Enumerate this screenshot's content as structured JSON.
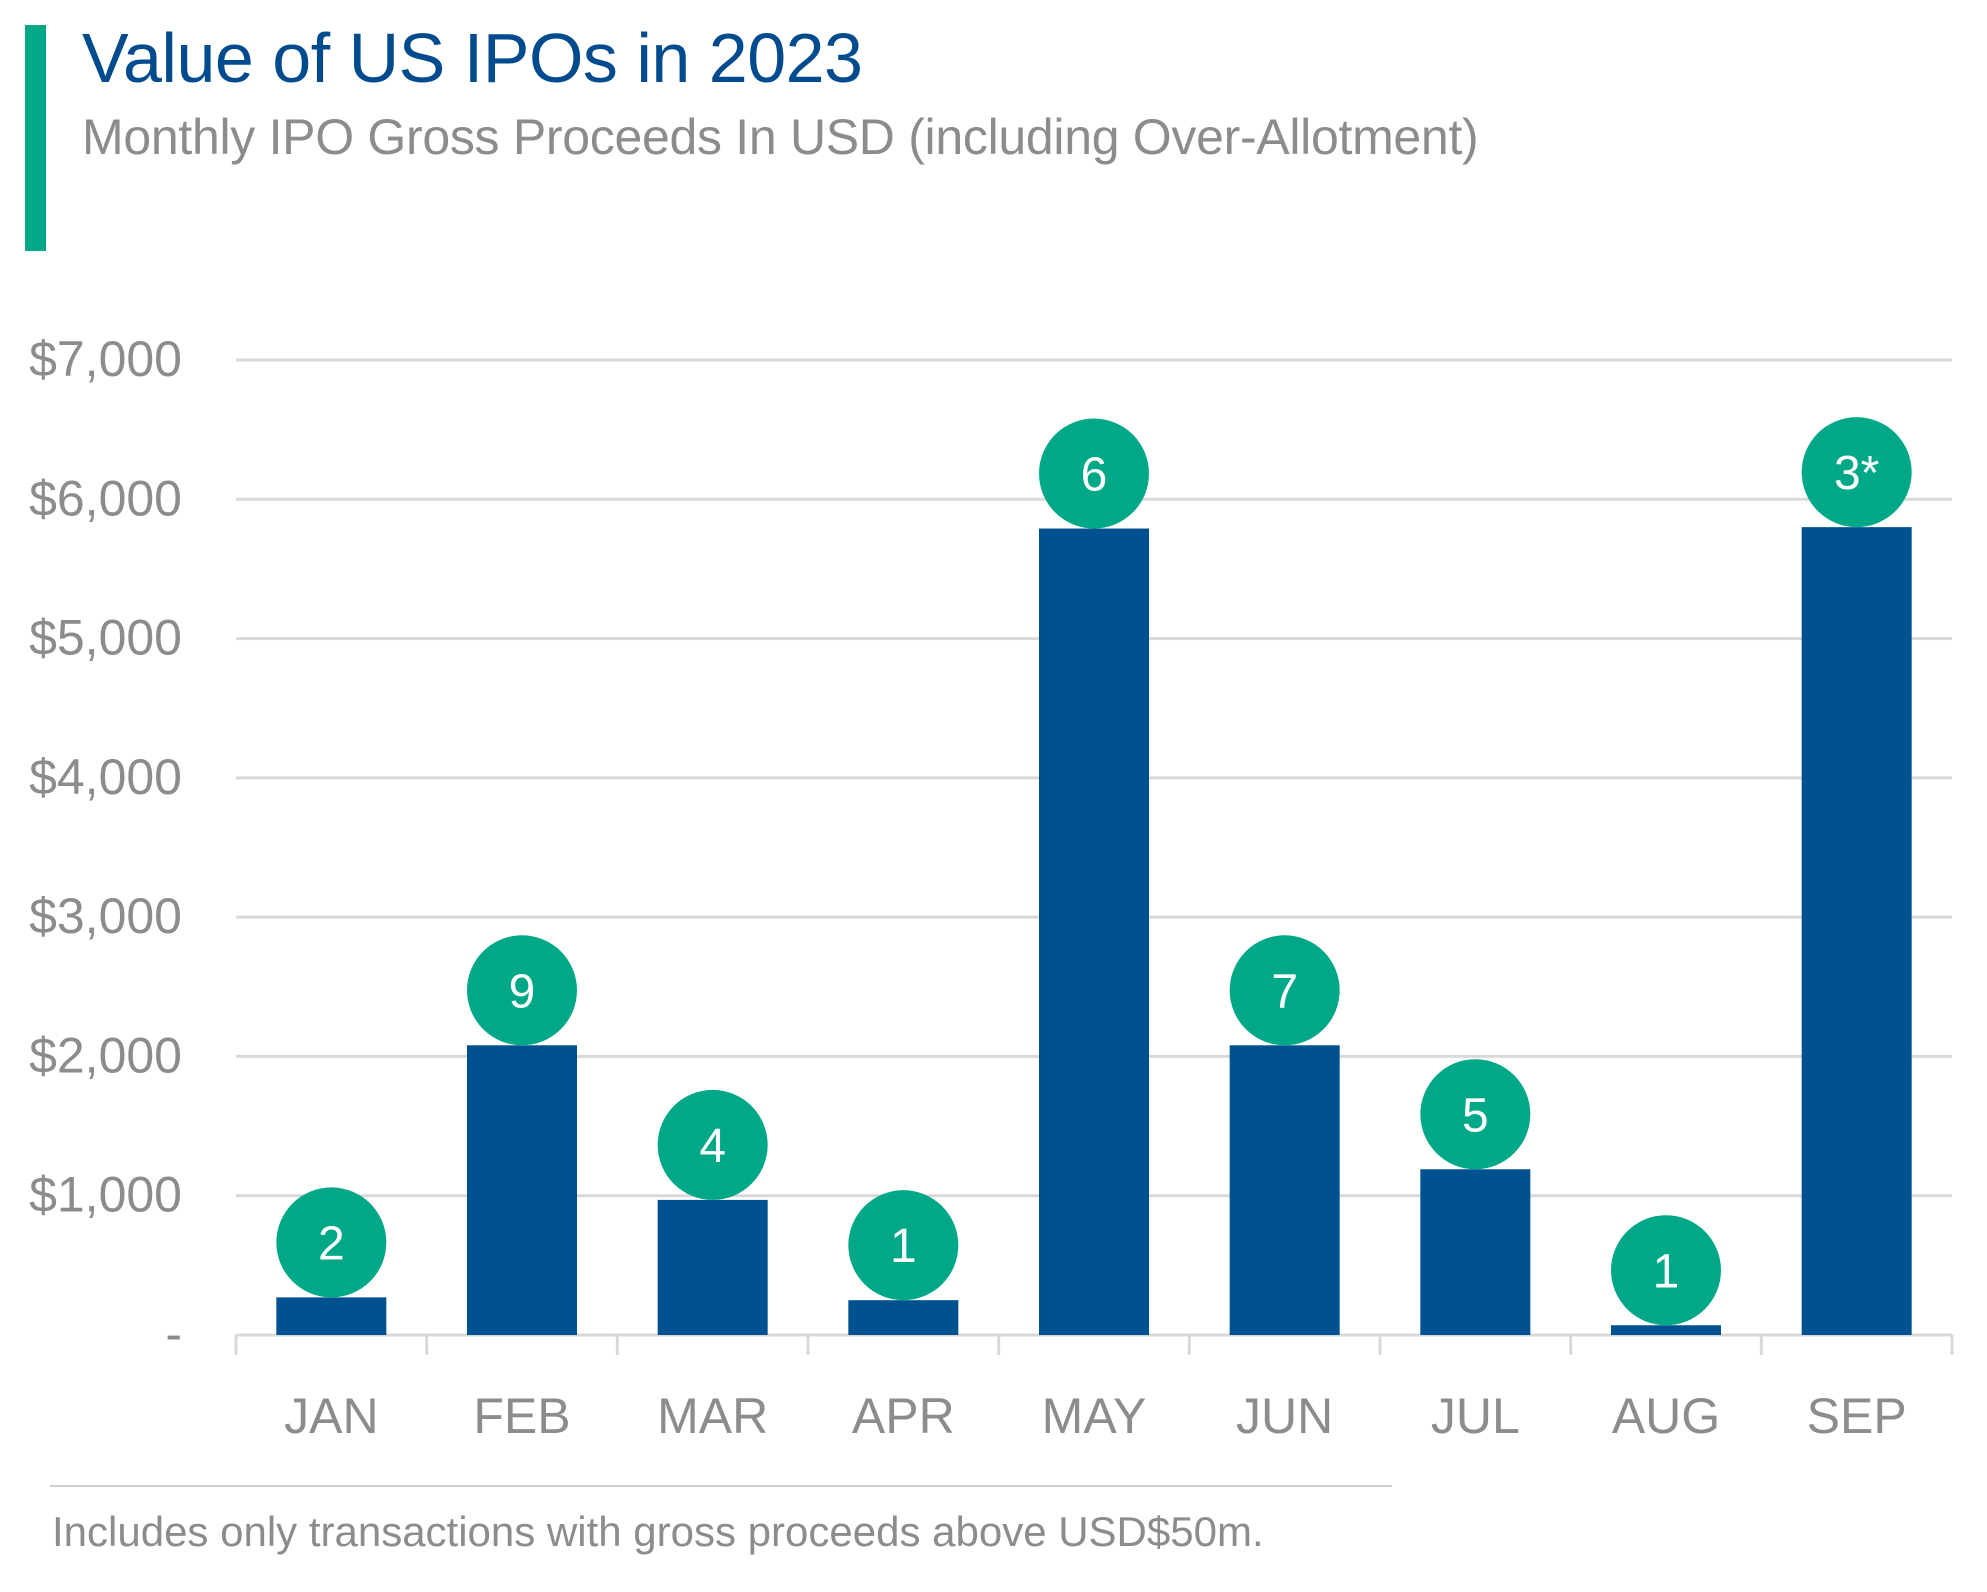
{
  "colors": {
    "accent": "#00a887",
    "bar": "#00518f",
    "badge": "#00a887",
    "badge_text": "#ffffff",
    "title": "#004b8d",
    "muted_text": "#8c8c8c",
    "gridline": "#d9d9d9"
  },
  "chart_data": {
    "type": "bar",
    "title": "Value of US IPOs in 2023",
    "subtitle": "Monthly IPO Gross Proceeds In USD (including Over-Allotment)",
    "xlabel": "",
    "ylabel": "",
    "categories": [
      "JAN",
      "FEB",
      "MAR",
      "APR",
      "MAY",
      "JUN",
      "JUL",
      "AUG",
      "SEP"
    ],
    "values": [
      270,
      2080,
      970,
      250,
      5790,
      2080,
      1190,
      70,
      5800
    ],
    "data_labels": [
      "2",
      "9",
      "4",
      "1",
      "6",
      "7",
      "5",
      "1",
      "3*"
    ],
    "data_label_meaning": "number of IPOs",
    "ylim": [
      0,
      7000
    ],
    "yticks": [
      0,
      1000,
      2000,
      3000,
      4000,
      5000,
      6000,
      7000
    ],
    "ytick_labels": [
      "-",
      "$1,000",
      "$2,000",
      "$3,000",
      "$4,000",
      "$5,000",
      "$6,000",
      "$7,000"
    ],
    "grid": true,
    "legend": "none"
  },
  "footnote": "Includes only transactions with gross proceeds above USD$50m."
}
